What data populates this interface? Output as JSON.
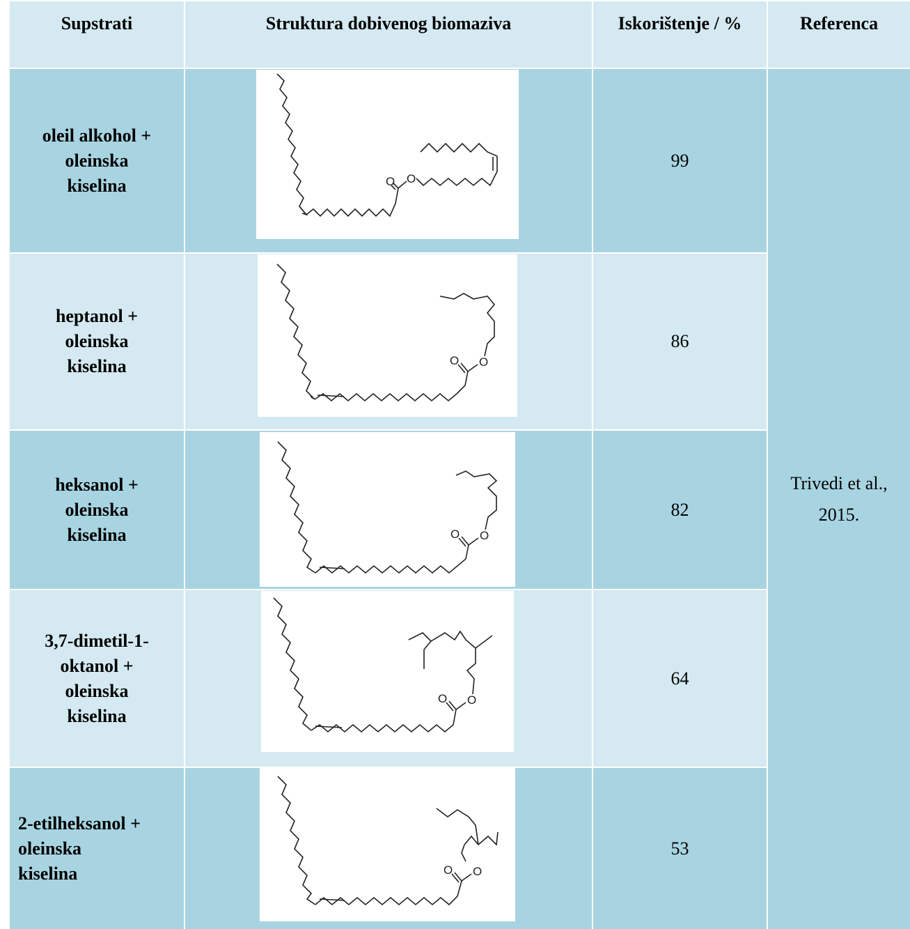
{
  "header": {
    "col1": "Supstrati",
    "col2": "Struktura dobivenog biomaziva",
    "col3": "Iskorištenje / %",
    "col4": "Referenca"
  },
  "rows": [
    {
      "substrate": [
        "oleil alkohol +",
        "oleinska",
        "kiselina"
      ],
      "yield": "99",
      "structure_icon": "oleyl-oleate-structure"
    },
    {
      "substrate": [
        "heptanol +",
        "oleinska",
        "kiselina"
      ],
      "yield": "86",
      "structure_icon": "heptyl-oleate-structure"
    },
    {
      "substrate": [
        "heksanol +",
        "oleinska",
        "kiselina"
      ],
      "yield": "82",
      "structure_icon": "hexyl-oleate-structure"
    },
    {
      "substrate": [
        "3,7-dimetil-1-",
        "oktanol +",
        "oleinska",
        "kiselina"
      ],
      "yield": "64",
      "structure_icon": "dimethyloctyl-oleate-structure"
    },
    {
      "substrate": [
        "2-etilheksanol +",
        "oleinska",
        "kiselina"
      ],
      "yield": "53",
      "structure_icon": "ethylhexyl-oleate-structure"
    }
  ],
  "reference": [
    "Trivedi et al.,",
    "2015."
  ],
  "colors": {
    "dark": "#a8d4e2",
    "light": "#d4e9f1"
  }
}
